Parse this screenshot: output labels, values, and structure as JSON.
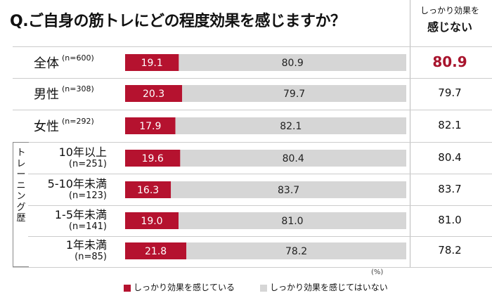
{
  "title": "Q.ご自身の筋トレにどの程度効果を感じますか？",
  "col_header": {
    "line1": "しっかり効果を",
    "line2": "感じない"
  },
  "group_label": "トレーニング歴",
  "unit": "(%)",
  "legend": [
    {
      "name": "しっかり効果を感じている",
      "color": "#b5122f"
    },
    {
      "name": "しっかり効果を感じてはいない",
      "color": "#d6d6d6"
    }
  ],
  "rows": [
    {
      "label": "全体",
      "n": "(n=600)",
      "right": "80.9"
    },
    {
      "label": "男性",
      "n": "(n=308)",
      "right": "79.7"
    },
    {
      "label": "女性",
      "n": "(n=292)",
      "right": "82.1"
    },
    {
      "label": "10年以上",
      "n": "(n=251)",
      "right": "80.4"
    },
    {
      "label": "5-10年未満",
      "n": "(n=123)",
      "right": "83.7"
    },
    {
      "label": "1-5年未満",
      "n": "(n=141)",
      "right": "81.0"
    },
    {
      "label": "1年未満",
      "n": "(n=85)",
      "right": "78.2"
    }
  ],
  "chart_data": {
    "type": "bar",
    "orientation": "horizontal",
    "stacked": true,
    "percent": true,
    "categories": [
      "全体",
      "男性",
      "女性",
      "10年以上",
      "5-10年未満",
      "1-5年未満",
      "1年未満"
    ],
    "series": [
      {
        "name": "しっかり効果を感じている",
        "color": "#b5122f",
        "values": [
          19.1,
          20.3,
          17.9,
          19.6,
          16.3,
          19.0,
          21.8
        ]
      },
      {
        "name": "しっかり効果を感じてはいない",
        "color": "#d6d6d6",
        "values": [
          80.9,
          79.7,
          82.1,
          80.4,
          83.7,
          81.0,
          78.2
        ]
      }
    ],
    "xlim": [
      0,
      100
    ],
    "legend_position": "bottom"
  }
}
